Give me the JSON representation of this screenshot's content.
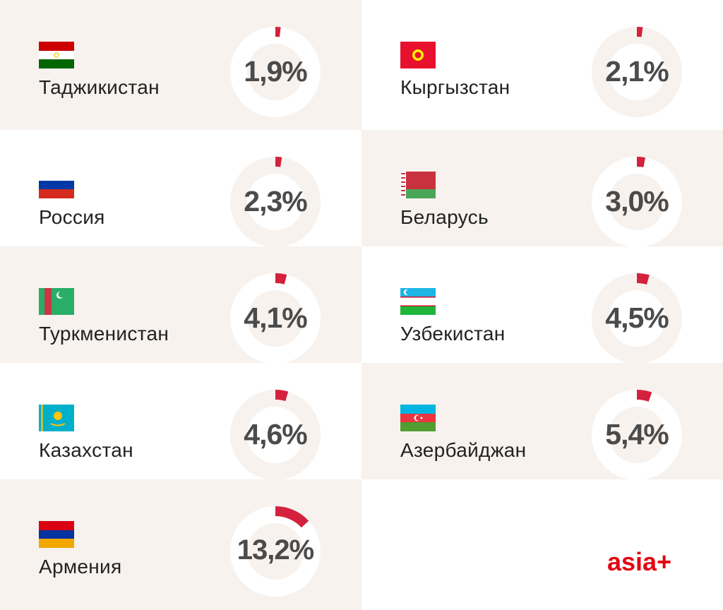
{
  "chart_data": {
    "type": "donut-grid",
    "unit": "%",
    "items": [
      {
        "country": "Таджикистан",
        "value": 1.9,
        "label": "1,9%",
        "flag": "tajikistan-flag"
      },
      {
        "country": "Кыргызстан",
        "value": 2.1,
        "label": "2,1%",
        "flag": "kyrgyzstan-flag"
      },
      {
        "country": "Россия",
        "value": 2.3,
        "label": "2,3%",
        "flag": "russia-flag"
      },
      {
        "country": "Беларусь",
        "value": 3.0,
        "label": "3,0%",
        "flag": "belarus-flag"
      },
      {
        "country": "Туркменистан",
        "value": 4.1,
        "label": "4,1%",
        "flag": "turkmenistan-flag"
      },
      {
        "country": "Узбекистан",
        "value": 4.5,
        "label": "4,5%",
        "flag": "uzbekistan-flag"
      },
      {
        "country": "Казахстан",
        "value": 4.6,
        "label": "4,6%",
        "flag": "kazakhstan-flag"
      },
      {
        "country": "Азербайджан",
        "value": 5.4,
        "label": "5,4%",
        "flag": "azerbaijan-flag"
      },
      {
        "country": "Армения",
        "value": 13.2,
        "label": "13,2%",
        "flag": "armenia-flag"
      }
    ]
  },
  "colors": {
    "accent": "#d4213d",
    "beige": "#f7f2ee",
    "text": "#4b4b4b",
    "logo": "#e30613"
  },
  "logo": "asia+"
}
